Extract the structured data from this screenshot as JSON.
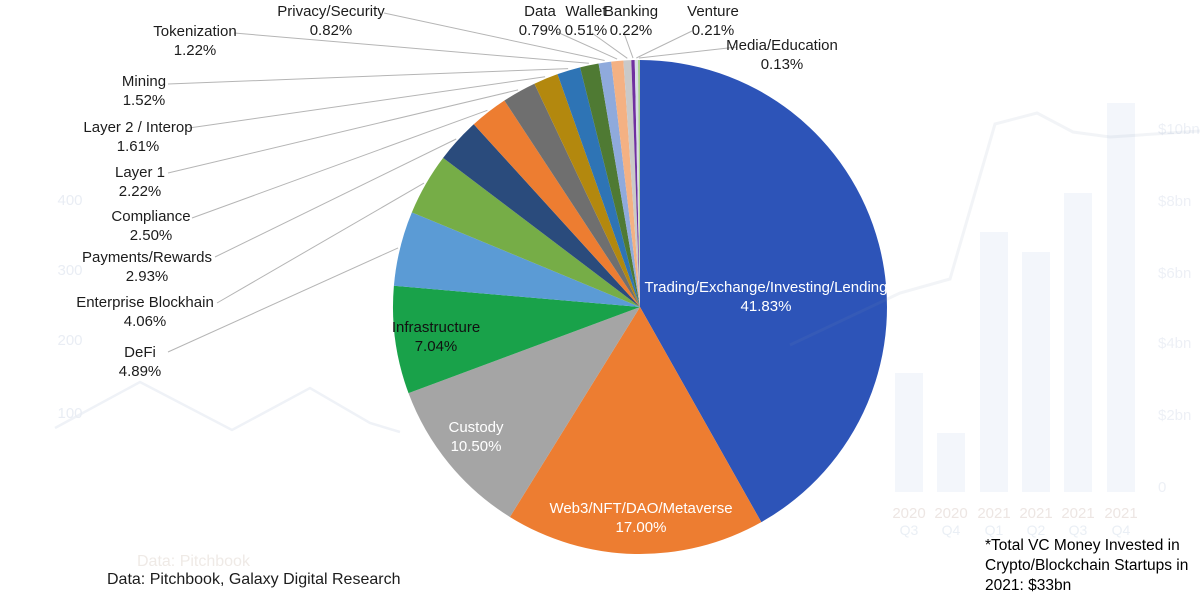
{
  "chart_data": {
    "type": "pie",
    "title": "",
    "legend_position": "none",
    "labels_on_chart": true,
    "slices": [
      {
        "label": "Trading/Exchange/Investing/Lending",
        "value": 41.83,
        "display": "41.83%",
        "color": "#2D54B8",
        "label_placement": "inside",
        "label_color": "#ffffff"
      },
      {
        "label": "Web3/NFT/DAO/Metaverse",
        "value": 17.0,
        "display": "17.00%",
        "color": "#ED7D31",
        "label_placement": "inside",
        "label_color": "#ffffff"
      },
      {
        "label": "Custody",
        "value": 10.5,
        "display": "10.50%",
        "color": "#A5A5A5",
        "label_placement": "inside",
        "label_color": "#ffffff"
      },
      {
        "label": "Infrastructure",
        "value": 7.04,
        "display": "7.04%",
        "color": "#19A24A",
        "label_placement": "inside",
        "label_color": "#111111"
      },
      {
        "label": "DeFi",
        "value": 4.89,
        "display": "4.89%",
        "color": "#5B9BD5",
        "label_placement": "outside"
      },
      {
        "label": "Enterprise Blockhain",
        "value": 4.06,
        "display": "4.06%",
        "color": "#76AD47",
        "label_placement": "outside"
      },
      {
        "label": "Payments/Rewards",
        "value": 2.93,
        "display": "2.93%",
        "color": "#2A4B7C",
        "label_placement": "outside"
      },
      {
        "label": "Compliance",
        "value": 2.5,
        "display": "2.50%",
        "color": "#ED7D31",
        "label_placement": "outside"
      },
      {
        "label": "Layer 1",
        "value": 2.22,
        "display": "2.22%",
        "color": "#6F6F6F",
        "label_placement": "outside"
      },
      {
        "label": "Layer 2 / Interop",
        "value": 1.61,
        "display": "1.61%",
        "color": "#B3880E",
        "label_placement": "outside"
      },
      {
        "label": "Mining",
        "value": 1.52,
        "display": "1.52%",
        "color": "#2E74B5",
        "label_placement": "outside"
      },
      {
        "label": "Tokenization",
        "value": 1.22,
        "display": "1.22%",
        "color": "#4F7A33",
        "label_placement": "outside"
      },
      {
        "label": "Privacy/Security",
        "value": 0.82,
        "display": "0.82%",
        "color": "#8FAADC",
        "label_placement": "outside"
      },
      {
        "label": "Data",
        "value": 0.79,
        "display": "0.79%",
        "color": "#F4B183",
        "label_placement": "outside"
      },
      {
        "label": "Wallet",
        "value": 0.51,
        "display": "0.51%",
        "color": "#C9C9C9",
        "label_placement": "outside"
      },
      {
        "label": "Banking",
        "value": 0.22,
        "display": "0.22%",
        "color": "#7030A0",
        "label_placement": "outside"
      },
      {
        "label": "Venture",
        "value": 0.21,
        "display": "0.21%",
        "color": "#D8DDE6",
        "label_placement": "outside"
      },
      {
        "label": "Media/Education",
        "value": 0.13,
        "display": "0.13%",
        "color": "#A9D18E",
        "label_placement": "outside"
      }
    ]
  },
  "captions": {
    "source": "Data: Pitchbook, Galaxy Digital Research",
    "note": "*Total VC Money Invested in Crypto/Blockchain Startups in 2021: $33bn"
  },
  "watermark": {
    "ghost_caption": "Data: Pitchbook",
    "left_axis_labels": [
      "400",
      "300",
      "200",
      "100"
    ],
    "right_axis_labels": [
      "$10bn",
      "$8bn",
      "$6bn",
      "$4bn",
      "$2bn",
      "0"
    ],
    "year_labels": [
      "2020",
      "2020",
      "2021",
      "2021",
      "2021",
      "2021"
    ],
    "quarter_labels": [
      "Q3",
      "Q4",
      "Q1",
      "Q2",
      "Q3",
      "Q4"
    ]
  }
}
